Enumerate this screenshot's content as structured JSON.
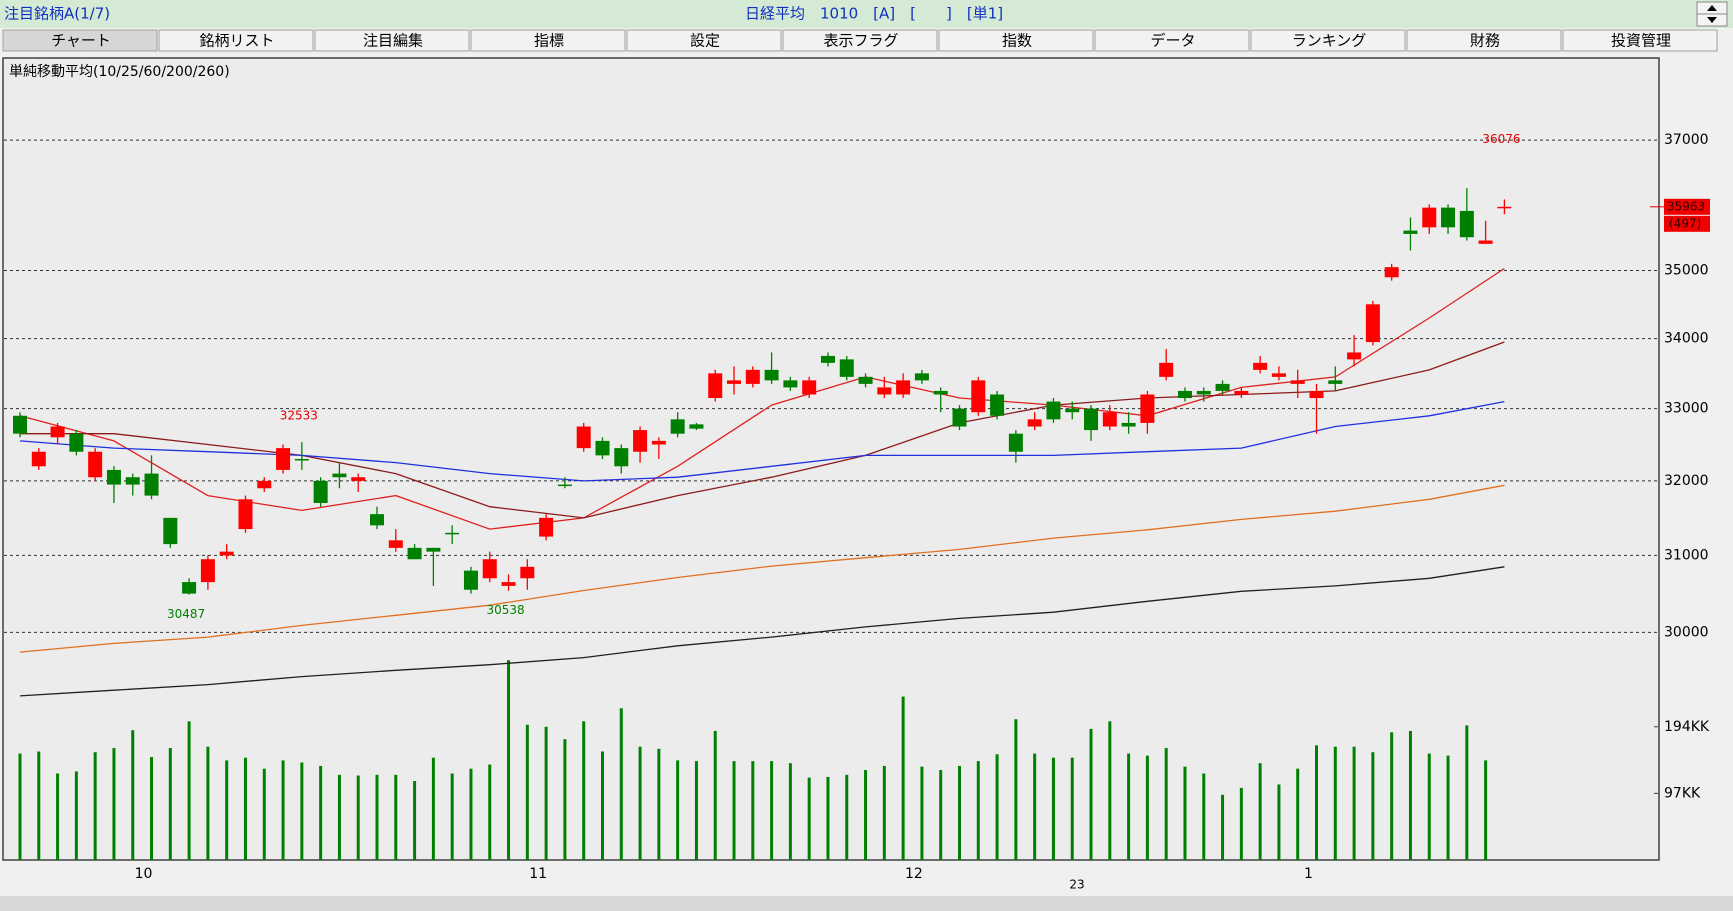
{
  "header": {
    "left": "注目銘柄A(1/7)",
    "center": "日経平均　1010　[A]　[　　]　[単1]"
  },
  "tabs": [
    "チャート",
    "銘柄リスト",
    "注目編集",
    "指標",
    "設定",
    "表示フラグ",
    "指数",
    "データ",
    "ランキング",
    "財務",
    "投資管理"
  ],
  "chart_data": {
    "type": "candlestick",
    "subtitle": "単純移動平均(10/25/60/200/260)",
    "log_scale": true,
    "grid": true,
    "up_color": "#ff0000",
    "down_color": "#008000",
    "ylim": [
      29000,
      38300
    ],
    "yticks": [
      30000,
      31000,
      32000,
      33000,
      34000,
      35000,
      37000
    ],
    "categories": [
      null,
      null,
      null,
      null,
      null,
      null,
      null,
      "10",
      null,
      null,
      null,
      null,
      null,
      null,
      null,
      null,
      null,
      null,
      null,
      null,
      null,
      null,
      null,
      null,
      null,
      null,
      null,
      null,
      "11",
      null,
      null,
      null,
      null,
      null,
      null,
      null,
      null,
      null,
      null,
      null,
      null,
      null,
      null,
      null,
      null,
      null,
      null,
      null,
      "12",
      null,
      null,
      null,
      null,
      null,
      null,
      null,
      null,
      null,
      null,
      null,
      null,
      null,
      null,
      null,
      null,
      null,
      null,
      null,
      null,
      "1",
      null,
      null,
      null,
      null,
      null,
      null,
      null,
      null,
      null,
      null
    ],
    "year_label": "23",
    "open": [
      32900,
      32200,
      32600,
      32650,
      32050,
      32150,
      32050,
      32100,
      31500,
      30650,
      30650,
      31000,
      31350,
      31900,
      32150,
      32300,
      32000,
      32100,
      32000,
      31550,
      31100,
      31100,
      31100,
      31300,
      30800,
      30700,
      30600,
      30700,
      31250,
      31950,
      32450,
      32550,
      32450,
      32400,
      32500,
      32850,
      32780,
      33150,
      33350,
      33350,
      33550,
      33400,
      33200,
      33750,
      33700,
      33450,
      33200,
      33200,
      33500,
      33250,
      33000,
      32950,
      33200,
      32650,
      32750,
      33100,
      33000,
      33000,
      32750,
      32800,
      32800,
      33450,
      33250,
      33250,
      33350,
      33200,
      33550,
      33450,
      33350,
      33150,
      33400,
      33700,
      33950,
      34900,
      35600,
      35650,
      35950,
      35900,
      35400,
      35950
    ],
    "high": [
      32950,
      32450,
      32800,
      32700,
      32450,
      32200,
      32100,
      32350,
      31500,
      30700,
      31000,
      31150,
      31800,
      32050,
      32500,
      32533,
      32050,
      32250,
      32100,
      31650,
      31350,
      31150,
      31100,
      31400,
      30850,
      31050,
      30750,
      30950,
      31550,
      32050,
      32800,
      32600,
      32500,
      32750,
      32600,
      32950,
      32800,
      33550,
      33600,
      33600,
      33800,
      33450,
      33450,
      33800,
      33750,
      33500,
      33450,
      33500,
      33550,
      33300,
      33050,
      33450,
      33250,
      32700,
      32950,
      33150,
      33100,
      33050,
      33050,
      32950,
      33250,
      33850,
      33300,
      33300,
      33400,
      33300,
      33750,
      33600,
      33550,
      33350,
      33600,
      34050,
      34550,
      35100,
      35800,
      36000,
      36000,
      36250,
      35750,
      36076
    ],
    "low": [
      32600,
      32150,
      32500,
      32350,
      32000,
      31700,
      31800,
      31750,
      31100,
      30487,
      30550,
      30950,
      31300,
      31850,
      32100,
      32150,
      31650,
      31900,
      31850,
      31350,
      31050,
      30950,
      30600,
      31150,
      30500,
      30650,
      30538,
      30550,
      31200,
      31900,
      32400,
      32300,
      32100,
      32250,
      32300,
      32600,
      32700,
      33100,
      33200,
      33300,
      33350,
      33250,
      33150,
      33600,
      33400,
      33300,
      33150,
      33150,
      33350,
      32950,
      32700,
      32900,
      32850,
      32250,
      32700,
      32800,
      32850,
      32550,
      32700,
      32650,
      32650,
      33400,
      33100,
      33100,
      33200,
      33150,
      33500,
      33400,
      33150,
      32650,
      33250,
      33600,
      33900,
      34850,
      35300,
      35550,
      35550,
      35450,
      35400,
      35850
    ],
    "close": [
      32650,
      32400,
      32750,
      32400,
      32400,
      31950,
      31950,
      31800,
      31150,
      30500,
      30950,
      31050,
      31750,
      32000,
      32450,
      32300,
      31700,
      32050,
      32050,
      31400,
      31200,
      30950,
      31050,
      31300,
      30550,
      30950,
      30650,
      30850,
      31500,
      31950,
      32750,
      32350,
      32200,
      32700,
      32550,
      32650,
      32720,
      33500,
      33400,
      33550,
      33400,
      33300,
      33400,
      33650,
      33450,
      33350,
      33300,
      33400,
      33400,
      33200,
      32750,
      33400,
      32900,
      32400,
      32850,
      32850,
      32950,
      32700,
      32950,
      32750,
      33200,
      33650,
      33150,
      33200,
      33250,
      33250,
      33650,
      33500,
      33400,
      33250,
      33350,
      33800,
      34500,
      35050,
      35550,
      35950,
      35650,
      35500,
      35450,
      35963
    ],
    "ma_series": [
      {
        "color": "#e02020",
        "x": [
          0,
          5,
          10,
          15,
          20,
          25,
          30,
          35,
          40,
          45,
          50,
          55,
          60,
          65,
          70,
          75,
          79
        ],
        "values": [
          32900,
          32550,
          31800,
          31600,
          31800,
          31350,
          31500,
          32200,
          33050,
          33450,
          33150,
          33050,
          32900,
          33300,
          33450,
          34300,
          35030
        ]
      },
      {
        "color": "#8b1a1a",
        "x": [
          0,
          5,
          10,
          15,
          20,
          25,
          30,
          35,
          40,
          45,
          50,
          55,
          60,
          65,
          70,
          75,
          79
        ],
        "values": [
          32650,
          32650,
          32500,
          32350,
          32100,
          31650,
          31500,
          31800,
          32050,
          32350,
          32800,
          33050,
          33150,
          33200,
          33250,
          33550,
          33950
        ]
      },
      {
        "color": "#2030e0",
        "x": [
          0,
          5,
          10,
          15,
          20,
          25,
          30,
          35,
          40,
          45,
          50,
          55,
          60,
          65,
          70,
          75,
          79
        ],
        "values": [
          32550,
          32450,
          32400,
          32350,
          32250,
          32100,
          32000,
          32050,
          32200,
          32350,
          32350,
          32350,
          32400,
          32450,
          32750,
          32900,
          33100
        ]
      },
      {
        "color": "#e07020",
        "x": [
          0,
          5,
          10,
          15,
          20,
          25,
          30,
          35,
          40,
          45,
          50,
          55,
          60,
          65,
          70,
          75,
          79
        ],
        "values": [
          29750,
          29860,
          29940,
          30090,
          30220,
          30350,
          30540,
          30710,
          30860,
          30970,
          31080,
          31230,
          31340,
          31480,
          31590,
          31750,
          31940
        ]
      },
      {
        "color": "#202020",
        "x": [
          0,
          5,
          10,
          15,
          20,
          25,
          30,
          35,
          40,
          45,
          50,
          55,
          60,
          65,
          70,
          75,
          79
        ],
        "values": [
          29200,
          29270,
          29340,
          29440,
          29520,
          29590,
          29680,
          29830,
          29940,
          30070,
          30180,
          30260,
          30400,
          30530,
          30600,
          30700,
          30850
        ]
      }
    ],
    "annotations": [
      {
        "value": 32533,
        "index": 15,
        "color": "#e00000",
        "position": "above"
      },
      {
        "value": 30487,
        "index": 9,
        "color": "#008000",
        "position": "below"
      },
      {
        "value": 30538,
        "index": 26,
        "color": "#008000",
        "position": "below"
      },
      {
        "value": 36076,
        "index": 79,
        "color": "#e00000",
        "position": "top"
      }
    ],
    "last_price": 35963,
    "change": {
      "value": 497,
      "label": "(497)"
    },
    "volume": {
      "color": "#008000",
      "ylim": [
        0,
        300
      ],
      "yticks": [
        {
          "value": 194,
          "label": "194KK"
        },
        {
          "value": 97,
          "label": "97KK"
        }
      ],
      "values": [
        155,
        158,
        126,
        129,
        157,
        163,
        189,
        150,
        163,
        202,
        165,
        145,
        149,
        133,
        145,
        142,
        137,
        124,
        123,
        124,
        124,
        115,
        149,
        126,
        133,
        139,
        291,
        197,
        194,
        176,
        202,
        158,
        221,
        165,
        162,
        145,
        144,
        188,
        144,
        144,
        144,
        141,
        120,
        121,
        124,
        131,
        137,
        238,
        136,
        131,
        137,
        144,
        154,
        205,
        155,
        149,
        149,
        191,
        202,
        155,
        152,
        163,
        136,
        126,
        95,
        105,
        141,
        110,
        133,
        167,
        165,
        165,
        157,
        186,
        188,
        155,
        152,
        196,
        145,
        null
      ]
    }
  }
}
